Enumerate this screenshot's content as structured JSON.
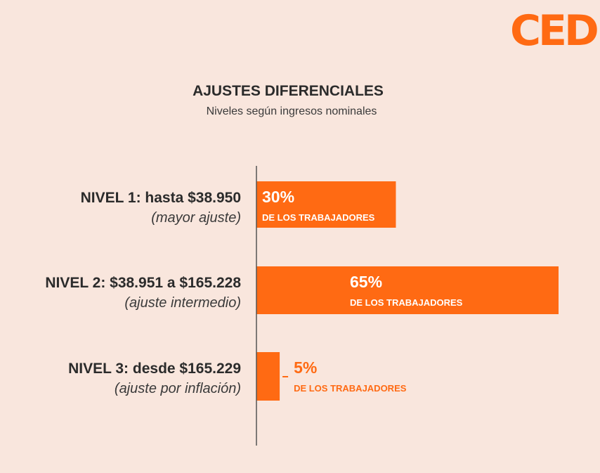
{
  "logo": {
    "text": "CED"
  },
  "chart_data": {
    "type": "bar",
    "orientation": "horizontal",
    "title": "AJUSTES DIFERENCIALES",
    "subtitle": "Niveles según ingresos nominales",
    "categories": [
      "NIVEL 1: hasta $38.950",
      "NIVEL 2: $38.951 a $165.228",
      "NIVEL 3: desde $165.229"
    ],
    "category_notes": [
      "(mayor ajuste)",
      "(ajuste intermedio)",
      "(ajuste por inflación)"
    ],
    "values": [
      30,
      65,
      5
    ],
    "value_labels": [
      "30%",
      "65%",
      "5%"
    ],
    "value_sublabel": "DE LOS TRABAJADORES",
    "unit": "%",
    "xlim": [
      0,
      65
    ],
    "grid": false,
    "colors": {
      "bar": "#ff6a13",
      "text_on_bar": "#ffffff",
      "text_outside": "#ff6a13",
      "axis": "#555555"
    }
  }
}
